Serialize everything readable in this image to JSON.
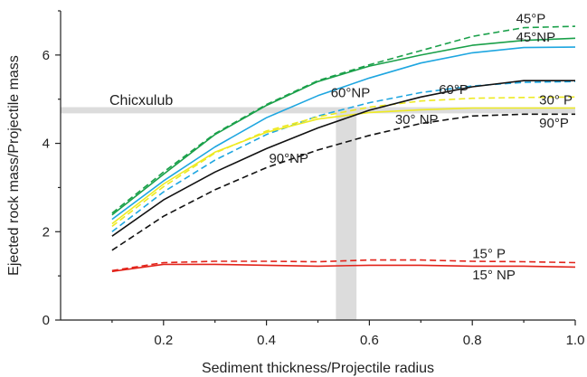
{
  "chart_data": {
    "type": "line",
    "title": "",
    "xlabel": "Sediment thickness/Projectile radius",
    "ylabel": "Ejected rock mass/Projectile mass",
    "xlim": [
      0,
      1.0
    ],
    "ylim": [
      0,
      7
    ],
    "xticks": [
      0.2,
      0.4,
      0.6,
      0.8,
      1.0
    ],
    "xtick_labels": [
      "0.2",
      "0.4",
      "0.6",
      "0.8",
      "1.0"
    ],
    "yticks": [
      0,
      2,
      4,
      6
    ],
    "ytick_labels": [
      "0",
      "2",
      "4",
      "6"
    ],
    "grid": false,
    "annotation": {
      "label": "Chicxulub",
      "y": 4.75,
      "y_band": [
        4.68,
        4.82
      ],
      "x_band": [
        0.535,
        0.575
      ],
      "band_color": "#dcdcdc"
    },
    "series": [
      {
        "name": "45°P",
        "color": "#1aa04a",
        "dash": true,
        "x": [
          0.1,
          0.2,
          0.3,
          0.4,
          0.5,
          0.6,
          0.7,
          0.8,
          0.9,
          1.0
        ],
        "y": [
          2.42,
          3.35,
          4.22,
          4.88,
          5.42,
          5.78,
          6.1,
          6.42,
          6.62,
          6.65
        ]
      },
      {
        "name": "45°NP",
        "color": "#1aa04a",
        "dash": false,
        "x": [
          0.1,
          0.2,
          0.3,
          0.4,
          0.5,
          0.6,
          0.7,
          0.8,
          0.9,
          1.0
        ],
        "y": [
          2.38,
          3.3,
          4.2,
          4.86,
          5.4,
          5.75,
          6.0,
          6.22,
          6.33,
          6.38
        ]
      },
      {
        "name": "60°NP",
        "color": "#1ea6e0",
        "dash": false,
        "x": [
          0.1,
          0.2,
          0.3,
          0.4,
          0.5,
          0.6,
          0.7,
          0.8,
          0.9,
          1.0
        ],
        "y": [
          2.28,
          3.15,
          3.92,
          4.58,
          5.08,
          5.48,
          5.82,
          6.05,
          6.17,
          6.18
        ]
      },
      {
        "name": "60°P",
        "color": "#1ea6e0",
        "dash": true,
        "x": [
          0.1,
          0.2,
          0.3,
          0.4,
          0.5,
          0.6,
          0.7,
          0.8,
          0.9,
          1.0
        ],
        "y": [
          2.0,
          2.9,
          3.62,
          4.2,
          4.62,
          4.92,
          5.15,
          5.3,
          5.38,
          5.4
        ]
      },
      {
        "name": "30° P",
        "color": "#eeea22",
        "dash": true,
        "x": [
          0.1,
          0.2,
          0.3,
          0.4,
          0.5,
          0.6,
          0.7,
          0.8,
          0.9,
          1.0
        ],
        "y": [
          2.12,
          3.02,
          3.78,
          4.28,
          4.6,
          4.82,
          4.96,
          5.02,
          5.04,
          5.05
        ]
      },
      {
        "name": "30° NP",
        "color": "#eeea22",
        "dash": false,
        "x": [
          0.1,
          0.2,
          0.3,
          0.4,
          0.5,
          0.6,
          0.7,
          0.8,
          0.9,
          1.0
        ],
        "y": [
          2.18,
          3.08,
          3.8,
          4.25,
          4.55,
          4.7,
          4.76,
          4.8,
          4.8,
          4.8
        ]
      },
      {
        "name": "black-solid",
        "color": "#111111",
        "dash": false,
        "x": [
          0.1,
          0.2,
          0.3,
          0.4,
          0.5,
          0.6,
          0.7,
          0.8,
          0.9,
          1.0
        ],
        "y": [
          1.9,
          2.72,
          3.35,
          3.88,
          4.35,
          4.75,
          5.05,
          5.28,
          5.42,
          5.42
        ]
      },
      {
        "name": "90°P",
        "color": "#111111",
        "dash": true,
        "x": [
          0.1,
          0.2,
          0.3,
          0.4,
          0.5,
          0.6,
          0.7,
          0.8,
          0.9,
          1.0
        ],
        "y": [
          1.58,
          2.35,
          2.95,
          3.45,
          3.85,
          4.18,
          4.45,
          4.62,
          4.66,
          4.66
        ]
      },
      {
        "name": "15° P",
        "color": "#e2231a",
        "dash": true,
        "x": [
          0.1,
          0.2,
          0.3,
          0.4,
          0.5,
          0.6,
          0.7,
          0.8,
          0.9,
          1.0
        ],
        "y": [
          1.12,
          1.3,
          1.33,
          1.33,
          1.32,
          1.36,
          1.36,
          1.33,
          1.32,
          1.3
        ]
      },
      {
        "name": "15° NP",
        "color": "#e2231a",
        "dash": false,
        "x": [
          0.1,
          0.2,
          0.3,
          0.4,
          0.5,
          0.6,
          0.7,
          0.8,
          0.9,
          1.0
        ],
        "y": [
          1.1,
          1.26,
          1.26,
          1.24,
          1.22,
          1.24,
          1.24,
          1.22,
          1.22,
          1.2
        ]
      }
    ],
    "series_labels": [
      {
        "text": "45°P",
        "series": "45°P",
        "x": 0.885,
        "y": 6.72
      },
      {
        "text": "45°NP",
        "series": "45°NP",
        "x": 0.885,
        "y": 6.3
      },
      {
        "text": "60°NP",
        "series": "60°NP",
        "x": 0.525,
        "y": 5.05
      },
      {
        "text": "60°P",
        "series": "60°P",
        "x": 0.735,
        "y": 5.12
      },
      {
        "text": "30° P",
        "series": "30° P",
        "x": 0.93,
        "y": 4.88
      },
      {
        "text": "30° NP",
        "series": "30° NP",
        "x": 0.65,
        "y": 4.44
      },
      {
        "text": "90°NP",
        "series": "black-solid",
        "x": 0.405,
        "y": 3.56
      },
      {
        "text": "90°P",
        "series": "90°P",
        "x": 0.93,
        "y": 4.36
      },
      {
        "text": "15° P",
        "series": "15° P",
        "x": 0.8,
        "y": 1.4
      },
      {
        "text": "15° NP",
        "series": "15° NP",
        "x": 0.8,
        "y": 0.92
      }
    ]
  }
}
